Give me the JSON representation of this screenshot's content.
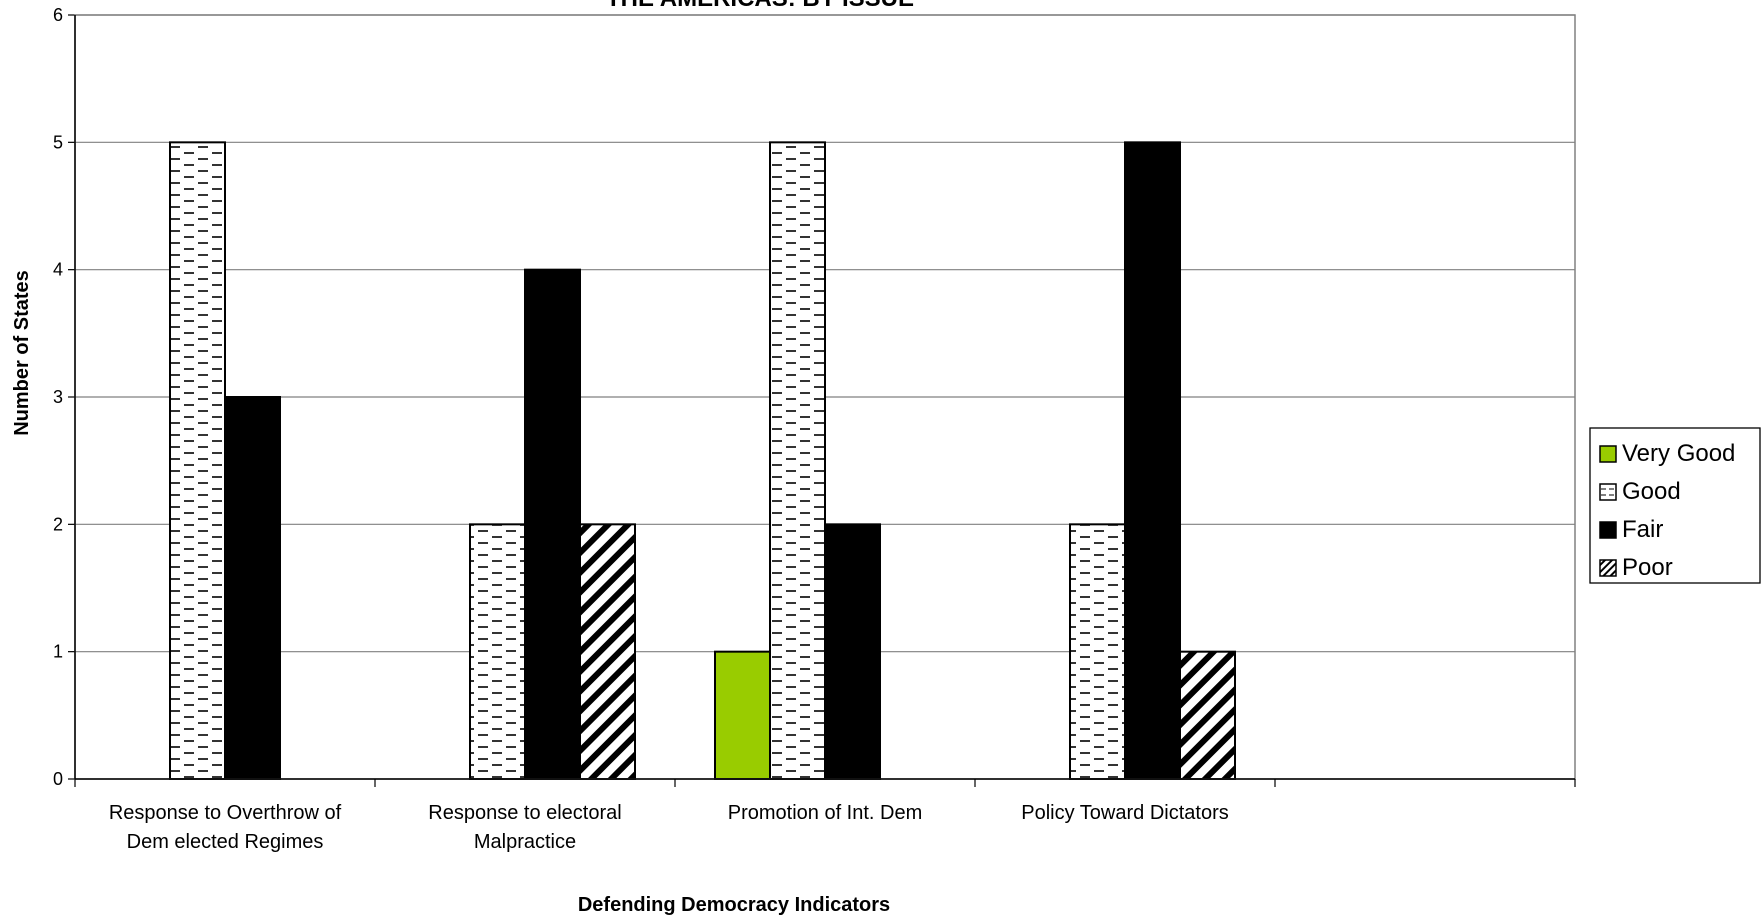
{
  "chart_data": {
    "type": "bar",
    "title": "THE AMERICAS: BY ISSUE",
    "xlabel": "Defending Democracy Indicators",
    "ylabel": "Number of States",
    "ylim": [
      0,
      6
    ],
    "yticks": [
      0,
      1,
      2,
      3,
      4,
      5,
      6
    ],
    "grid": true,
    "legend_position": "right",
    "categories": [
      [
        "Response to Overthrow of",
        "Dem elected Regimes"
      ],
      [
        "Response to electoral",
        "Malpractice"
      ],
      [
        "Promotion of Int.  Dem"
      ],
      [
        "Policy Toward Dictators"
      ],
      [
        ""
      ]
    ],
    "series": [
      {
        "name": "Very Good",
        "color": "#99cc00",
        "pattern": "solid",
        "values": [
          0,
          0,
          1,
          0,
          0
        ]
      },
      {
        "name": "Good",
        "color": "#ffffff",
        "pattern": "dashes",
        "values": [
          5,
          2,
          5,
          2,
          0
        ]
      },
      {
        "name": "Fair",
        "color": "#000000",
        "pattern": "solid",
        "values": [
          3,
          4,
          2,
          5,
          0
        ]
      },
      {
        "name": "Poor",
        "color": "#ffffff",
        "pattern": "diagonal",
        "values": [
          0,
          2,
          0,
          1,
          0
        ]
      }
    ]
  }
}
